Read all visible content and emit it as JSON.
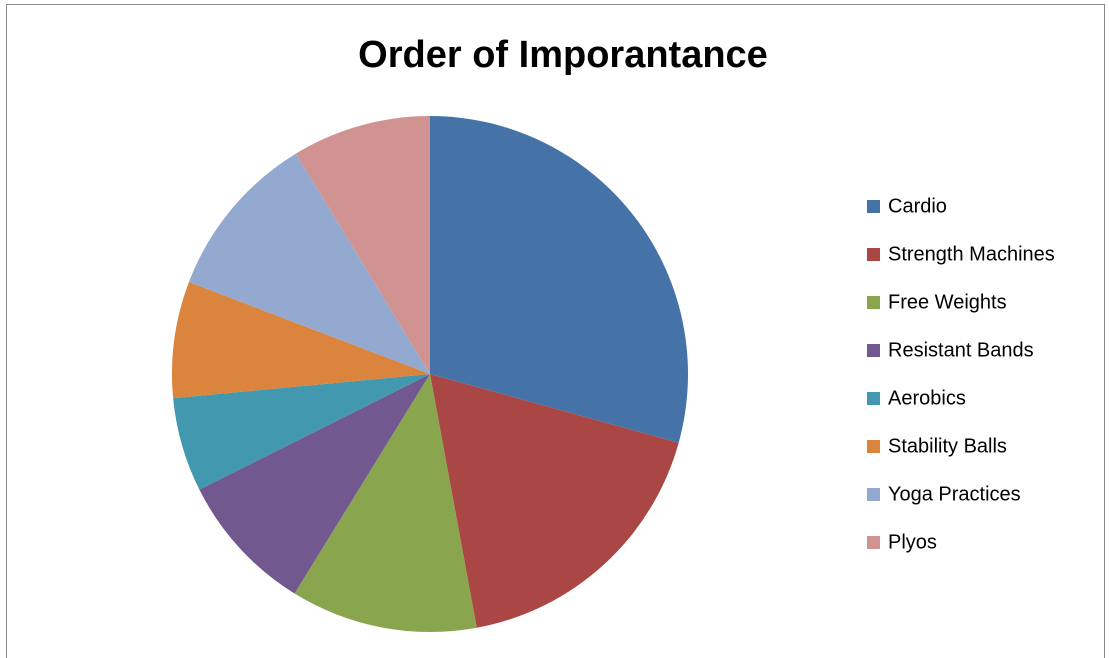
{
  "chart_data": {
    "type": "pie",
    "title": "Order of Imporantance",
    "categories": [
      "Cardio",
      "Strength Machines",
      "Free Weights",
      "Resistant Bands",
      "Aerobics",
      "Stability Balls",
      "Yoga Practices",
      "Plyos"
    ],
    "values": [
      29.3,
      17.8,
      11.7,
      8.8,
      5.9,
      7.3,
      10.5,
      8.7
    ],
    "colors": [
      "#4572a7",
      "#aa4643",
      "#89a54e",
      "#71588f",
      "#4198af",
      "#db843d",
      "#93a9cf",
      "#d19392"
    ],
    "legend": "right"
  }
}
